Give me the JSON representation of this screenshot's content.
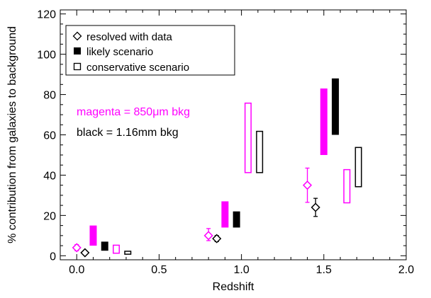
{
  "chart_data": {
    "type": "scatter",
    "xlabel": "Redshift",
    "ylabel": "% contribution from galaxies to background",
    "xlim": [
      -0.1,
      2.0
    ],
    "ylim": [
      -2,
      122
    ],
    "xticks": [
      0.0,
      0.5,
      1.0,
      1.5,
      2.0
    ],
    "xtick_labels": [
      "0.0",
      "0.5",
      "1.0",
      "1.5",
      "2.0"
    ],
    "yticks": [
      0,
      20,
      40,
      60,
      80,
      100,
      120
    ],
    "ytick_labels": [
      "0",
      "20",
      "40",
      "60",
      "80",
      "100",
      "120"
    ],
    "grid": false,
    "legend": {
      "placement": "top-left",
      "entries": [
        {
          "marker": "diamond",
          "label": "resolved with data"
        },
        {
          "marker": "filled-rect",
          "label": "likely scenario"
        },
        {
          "marker": "open-rect",
          "label": "conservative scenario"
        }
      ]
    },
    "annotations": [
      {
        "text": "magenta = 850μm bkg",
        "color": "#ff00ff"
      },
      {
        "text": "black = 1.16mm bkg",
        "color": "#000000"
      }
    ],
    "colors": {
      "850um": "#ff00ff",
      "1.16mm": "#000000"
    },
    "series": [
      {
        "kind": "resolved",
        "background": "850um",
        "points": [
          {
            "x": 0.0,
            "y": 4.0,
            "yerr_low": 1.5,
            "yerr_high": 1.5
          },
          {
            "x": 0.8,
            "y": 10.0,
            "yerr_low": 2.5,
            "yerr_high": 3.5
          },
          {
            "x": 1.4,
            "y": 35.0,
            "yerr_low": 8.5,
            "yerr_high": 8.5
          }
        ]
      },
      {
        "kind": "resolved",
        "background": "1.16mm",
        "points": [
          {
            "x": 0.05,
            "y": 1.5,
            "yerr_low": 0.5,
            "yerr_high": 0.5
          },
          {
            "x": 0.85,
            "y": 8.5,
            "yerr_low": 1.5,
            "yerr_high": 1.5
          },
          {
            "x": 1.45,
            "y": 24.0,
            "yerr_low": 4.5,
            "yerr_high": 4.5
          }
        ]
      },
      {
        "kind": "likely",
        "background": "850um",
        "ranges": [
          {
            "x": 0.1,
            "low": 5.0,
            "high": 15.0
          },
          {
            "x": 0.9,
            "low": 14.0,
            "high": 27.0
          },
          {
            "x": 1.5,
            "low": 50.0,
            "high": 83.0
          }
        ]
      },
      {
        "kind": "likely",
        "background": "1.16mm",
        "ranges": [
          {
            "x": 0.17,
            "low": 2.5,
            "high": 7.0
          },
          {
            "x": 0.97,
            "low": 14.0,
            "high": 22.0
          },
          {
            "x": 1.57,
            "low": 60.0,
            "high": 88.0
          }
        ]
      },
      {
        "kind": "conservative",
        "background": "850um",
        "ranges": [
          {
            "x": 0.24,
            "low": 1.0,
            "high": 5.5
          },
          {
            "x": 1.04,
            "low": 41.0,
            "high": 76.0
          },
          {
            "x": 1.64,
            "low": 26.0,
            "high": 43.0
          }
        ]
      },
      {
        "kind": "conservative",
        "background": "1.16mm",
        "ranges": [
          {
            "x": 0.31,
            "low": 0.5,
            "high": 2.5
          },
          {
            "x": 1.11,
            "low": 41.0,
            "high": 62.0
          },
          {
            "x": 1.71,
            "low": 34.0,
            "high": 54.0
          }
        ]
      }
    ]
  }
}
